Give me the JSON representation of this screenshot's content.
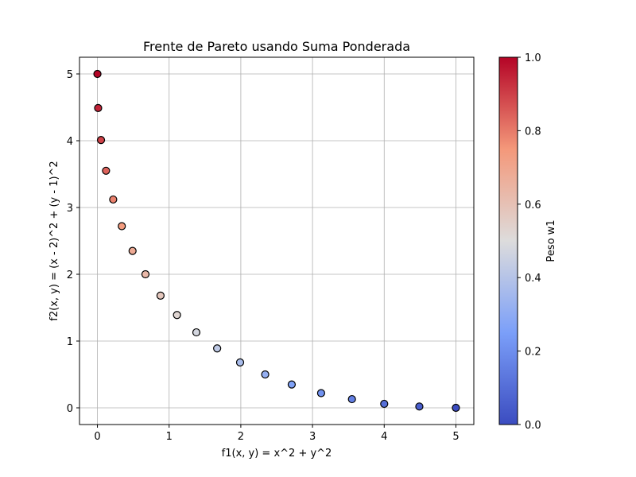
{
  "chart_data": {
    "type": "scatter",
    "title": "Frente de Pareto usando Suma Ponderada",
    "xlabel": "f1(x, y) = x^2 + y^2",
    "ylabel": "f2(x, y) = (x - 2)^2 + (y - 1)^2",
    "xlim": [
      -0.25,
      5.25
    ],
    "ylim": [
      -0.25,
      5.25
    ],
    "xticks": [
      0,
      1,
      2,
      3,
      4,
      5
    ],
    "yticks": [
      0,
      1,
      2,
      3,
      4,
      5
    ],
    "grid": true,
    "colormap": "coolwarm",
    "colorbar": {
      "label": "Peso w1",
      "range": [
        0.0,
        1.0
      ],
      "ticks": [
        "0.0",
        "0.2",
        "0.4",
        "0.6",
        "0.8",
        "1.0"
      ]
    },
    "points": [
      {
        "x": 5.0,
        "y": 0.0,
        "w1": 0.0
      },
      {
        "x": 4.49,
        "y": 0.02,
        "w1": 0.053
      },
      {
        "x": 4.0,
        "y": 0.06,
        "w1": 0.105
      },
      {
        "x": 3.55,
        "y": 0.13,
        "w1": 0.158
      },
      {
        "x": 3.12,
        "y": 0.22,
        "w1": 0.211
      },
      {
        "x": 2.71,
        "y": 0.35,
        "w1": 0.263
      },
      {
        "x": 2.34,
        "y": 0.5,
        "w1": 0.316
      },
      {
        "x": 1.99,
        "y": 0.68,
        "w1": 0.368
      },
      {
        "x": 1.67,
        "y": 0.89,
        "w1": 0.421
      },
      {
        "x": 1.38,
        "y": 1.13,
        "w1": 0.474
      },
      {
        "x": 1.11,
        "y": 1.39,
        "w1": 0.526
      },
      {
        "x": 0.88,
        "y": 1.68,
        "w1": 0.579
      },
      {
        "x": 0.67,
        "y": 2.0,
        "w1": 0.632
      },
      {
        "x": 0.49,
        "y": 2.35,
        "w1": 0.684
      },
      {
        "x": 0.34,
        "y": 2.72,
        "w1": 0.737
      },
      {
        "x": 0.22,
        "y": 3.12,
        "w1": 0.789
      },
      {
        "x": 0.12,
        "y": 3.55,
        "w1": 0.842
      },
      {
        "x": 0.05,
        "y": 4.01,
        "w1": 0.895
      },
      {
        "x": 0.01,
        "y": 4.49,
        "w1": 0.947
      },
      {
        "x": 0.0,
        "y": 5.0,
        "w1": 1.0
      }
    ]
  }
}
